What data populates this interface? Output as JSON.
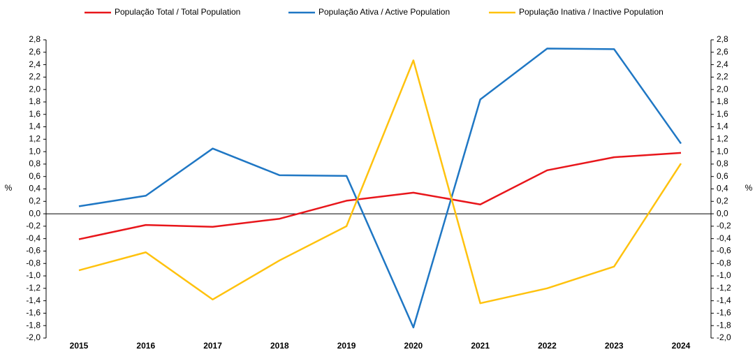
{
  "chart_data": {
    "type": "line",
    "categories": [
      "2015",
      "2016",
      "2017",
      "2018",
      "2019",
      "2020",
      "2021",
      "2022",
      "2023",
      "2024"
    ],
    "series": [
      {
        "name": "População Total / Total Population",
        "color": "#e8161b",
        "values": [
          -0.41,
          -0.18,
          -0.21,
          -0.08,
          0.21,
          0.34,
          0.15,
          0.7,
          0.91,
          0.98
        ]
      },
      {
        "name": "População Ativa / Active Population",
        "color": "#1f77c4",
        "values": [
          0.12,
          0.29,
          1.05,
          0.62,
          0.61,
          -1.83,
          1.84,
          2.66,
          2.65,
          1.13
        ]
      },
      {
        "name": "População Inativa / Inactive Population",
        "color": "#ffc20e",
        "values": [
          -0.91,
          -0.62,
          -1.38,
          -0.75,
          -0.2,
          2.47,
          -1.44,
          -1.2,
          -0.85,
          0.81
        ]
      }
    ],
    "ylabel": "%",
    "y2label": "%",
    "ylim": [
      -2.0,
      2.8
    ],
    "yticks": [
      {
        "value": -2.0,
        "label": "-2,0"
      },
      {
        "value": -1.8,
        "label": "-1,8"
      },
      {
        "value": -1.6,
        "label": "-1,6"
      },
      {
        "value": -1.4,
        "label": "-1,4"
      },
      {
        "value": -1.2,
        "label": "-1,2"
      },
      {
        "value": -1.0,
        "label": "-1,0"
      },
      {
        "value": -0.8,
        "label": "-0,8"
      },
      {
        "value": -0.6,
        "label": "-0,6"
      },
      {
        "value": -0.4,
        "label": "-0,4"
      },
      {
        "value": -0.2,
        "label": "-0,2"
      },
      {
        "value": 0,
        "label": "0,0"
      },
      {
        "value": 0.2,
        "label": "0,2"
      },
      {
        "value": 0.4,
        "label": "0,4"
      },
      {
        "value": 0.6,
        "label": "0,6"
      },
      {
        "value": 0.8,
        "label": "0,8"
      },
      {
        "value": 1.0,
        "label": "1,0"
      },
      {
        "value": 1.2,
        "label": "1,2"
      },
      {
        "value": 1.4,
        "label": "1,4"
      },
      {
        "value": 1.6,
        "label": "1,6"
      },
      {
        "value": 1.8,
        "label": "1,8"
      },
      {
        "value": 2.0,
        "label": "2,0"
      },
      {
        "value": 2.2,
        "label": "2,2"
      },
      {
        "value": 2.4,
        "label": "2,4"
      },
      {
        "value": 2.6,
        "label": "2,6"
      },
      {
        "value": 2.8,
        "label": "2,8"
      }
    ],
    "y2lim": [
      -2.0,
      2.8
    ],
    "y2ticks": [
      {
        "value": -2.0,
        "label": "-2,0"
      },
      {
        "value": -1.8,
        "label": "-1,8"
      },
      {
        "value": -1.6,
        "label": "-1,6"
      },
      {
        "value": -1.4,
        "label": "-1,4"
      },
      {
        "value": -1.2,
        "label": "-1,2"
      },
      {
        "value": -1.0,
        "label": "-1,0"
      },
      {
        "value": -0.8,
        "label": "-0,8"
      },
      {
        "value": -0.6,
        "label": "-0,6"
      },
      {
        "value": -0.4,
        "label": "-0,4"
      },
      {
        "value": -0.2,
        "label": "-0,2"
      },
      {
        "value": 0,
        "label": "0,0"
      },
      {
        "value": 0.2,
        "label": "0,2"
      },
      {
        "value": 0.4,
        "label": "0,4"
      },
      {
        "value": 0.6,
        "label": "0,6"
      },
      {
        "value": 0.8,
        "label": "0,8"
      },
      {
        "value": 1.0,
        "label": "1,0"
      },
      {
        "value": 1.2,
        "label": "1,2"
      },
      {
        "value": 1.4,
        "label": "1,4"
      },
      {
        "value": 1.6,
        "label": "1,6"
      },
      {
        "value": 1.8,
        "label": "1,8"
      },
      {
        "value": 2.0,
        "label": "2,0"
      },
      {
        "value": 2.2,
        "label": "2,2"
      },
      {
        "value": 2.4,
        "label": "2,4"
      },
      {
        "value": 2.6,
        "label": "2,6"
      },
      {
        "value": 2.8,
        "label": "2,8"
      }
    ],
    "grid": false
  }
}
